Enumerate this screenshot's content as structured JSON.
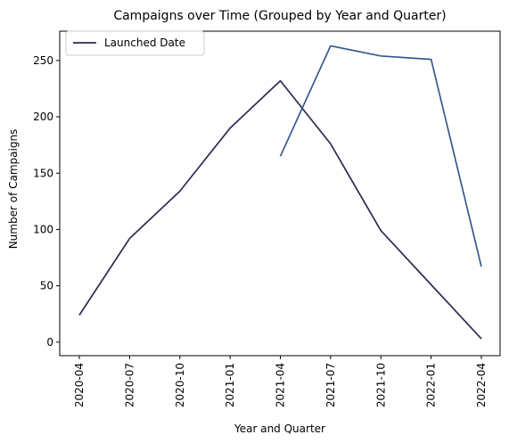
{
  "chart_data": {
    "type": "line",
    "title": "Campaigns over Time (Grouped by Year and Quarter)",
    "xlabel": "Year and Quarter",
    "ylabel": "Number of Campaigns",
    "categories": [
      "2020-04",
      "2020-07",
      "2020-10",
      "2021-01",
      "2021-04",
      "2021-07",
      "2021-10",
      "2022-01",
      "2022-04"
    ],
    "ylim": [
      -12,
      276
    ],
    "yticks": [
      0,
      50,
      100,
      150,
      200,
      250
    ],
    "grid": false,
    "legend_position": "top-left",
    "series": [
      {
        "name": "Launched Date",
        "color": "#2e2a51",
        "values": [
          24,
          92,
          134,
          190,
          232,
          176,
          99,
          51,
          3
        ]
      },
      {
        "color": "#35598f",
        "values": [
          null,
          null,
          null,
          null,
          165,
          263,
          254,
          251,
          67
        ]
      }
    ]
  }
}
